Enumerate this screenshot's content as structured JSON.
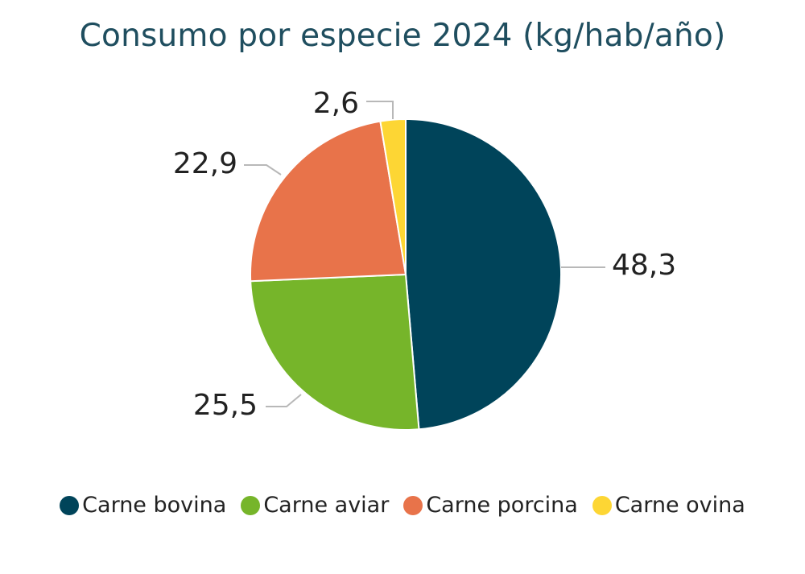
{
  "chart_data": {
    "type": "pie",
    "title": "Consumo por especie 2024 (kg/hab/año)",
    "categories": [
      "Carne bovina",
      "Carne aviar",
      "Carne porcina",
      "Carne ovina"
    ],
    "values": [
      48.3,
      25.5,
      22.9,
      2.6
    ],
    "value_labels": [
      "48,3",
      "25,5",
      "22,9",
      "2,6"
    ],
    "colors": [
      "#00445a",
      "#76b52a",
      "#e8734a",
      "#fdd634"
    ],
    "legend_position": "bottom"
  }
}
